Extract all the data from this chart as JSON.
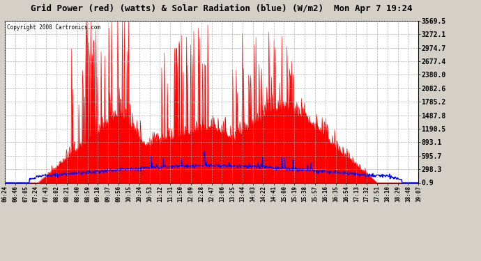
{
  "title": "Grid Power (red) (watts) & Solar Radiation (blue) (W/m2)  Mon Apr 7 19:24",
  "copyright": "Copyright 2008 Cartronics.com",
  "fig_bg_color": "#d4d0c8",
  "plot_bg_color": "#ffffff",
  "y_min": 0.9,
  "y_max": 3569.5,
  "y_ticks": [
    0.9,
    298.3,
    595.7,
    893.1,
    1190.5,
    1487.8,
    1785.2,
    2082.6,
    2380.0,
    2677.4,
    2974.7,
    3272.1,
    3569.5
  ],
  "x_labels": [
    "06:24",
    "06:46",
    "07:05",
    "07:24",
    "07:43",
    "08:02",
    "08:21",
    "08:40",
    "08:59",
    "09:18",
    "09:37",
    "09:56",
    "10:15",
    "10:34",
    "10:53",
    "11:12",
    "11:31",
    "11:50",
    "12:09",
    "12:28",
    "12:47",
    "13:06",
    "13:25",
    "13:44",
    "14:03",
    "14:22",
    "14:41",
    "15:00",
    "15:19",
    "15:38",
    "15:57",
    "16:16",
    "16:35",
    "16:54",
    "17:13",
    "17:32",
    "17:51",
    "18:10",
    "18:29",
    "18:48",
    "19:07"
  ],
  "red_color": "#ff0000",
  "blue_color": "#0000ff",
  "grid_color": "#aaaaaa"
}
